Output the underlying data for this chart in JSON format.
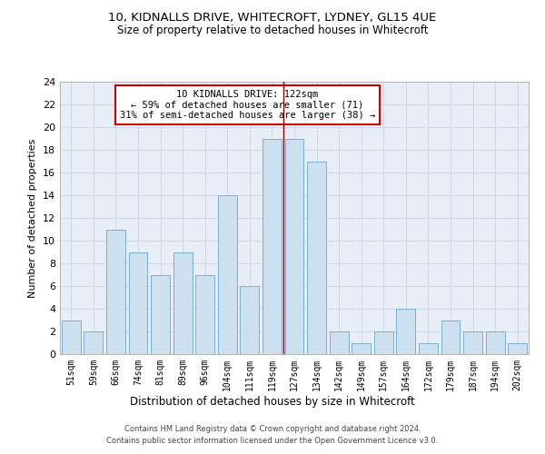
{
  "title_line1": "10, KIDNALLS DRIVE, WHITECROFT, LYDNEY, GL15 4UE",
  "title_line2": "Size of property relative to detached houses in Whitecroft",
  "xlabel": "Distribution of detached houses by size in Whitecroft",
  "ylabel": "Number of detached properties",
  "categories": [
    "51sqm",
    "59sqm",
    "66sqm",
    "74sqm",
    "81sqm",
    "89sqm",
    "96sqm",
    "104sqm",
    "111sqm",
    "119sqm",
    "127sqm",
    "134sqm",
    "142sqm",
    "149sqm",
    "157sqm",
    "164sqm",
    "172sqm",
    "179sqm",
    "187sqm",
    "194sqm",
    "202sqm"
  ],
  "values": [
    3,
    2,
    11,
    9,
    7,
    9,
    7,
    14,
    6,
    19,
    19,
    17,
    2,
    1,
    2,
    4,
    1,
    3,
    2,
    2,
    1
  ],
  "bar_color": "#cce0f0",
  "bar_edge_color": "#7aafd4",
  "vline_x": 9.5,
  "vline_color": "#8b0000",
  "annotation_text": "10 KIDNALLS DRIVE: 122sqm\n← 59% of detached houses are smaller (71)\n31% of semi-detached houses are larger (38) →",
  "annotation_box_color": "#ffffff",
  "annotation_box_edge": "#cc0000",
  "ylim": [
    0,
    24
  ],
  "yticks": [
    0,
    2,
    4,
    6,
    8,
    10,
    12,
    14,
    16,
    18,
    20,
    22,
    24
  ],
  "grid_color": "#d0d8e8",
  "bg_color": "#e8eef8",
  "footer_line1": "Contains HM Land Registry data © Crown copyright and database right 2024.",
  "footer_line2": "Contains public sector information licensed under the Open Government Licence v3.0."
}
